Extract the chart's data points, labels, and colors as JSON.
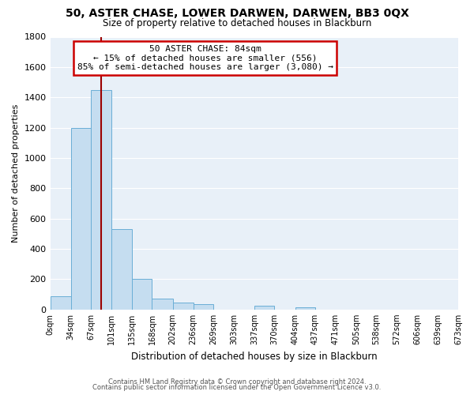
{
  "title": "50, ASTER CHASE, LOWER DARWEN, DARWEN, BB3 0QX",
  "subtitle": "Size of property relative to detached houses in Blackburn",
  "xlabel": "Distribution of detached houses by size in Blackburn",
  "ylabel": "Number of detached properties",
  "bar_color": "#c5ddf0",
  "bar_edge_color": "#6aaed6",
  "annotation_line_color": "#9b0000",
  "annotation_box_color": "#cc0000",
  "bins": [
    0,
    34,
    67,
    101,
    135,
    168,
    202,
    236,
    269,
    303,
    337,
    370,
    404,
    437,
    471,
    505,
    538,
    572,
    606,
    639,
    673
  ],
  "counts": [
    90,
    1200,
    1450,
    530,
    200,
    70,
    48,
    35,
    0,
    0,
    25,
    0,
    15,
    0,
    0,
    0,
    0,
    0,
    0,
    0
  ],
  "tick_labels": [
    "0sqm",
    "34sqm",
    "67sqm",
    "101sqm",
    "135sqm",
    "168sqm",
    "202sqm",
    "236sqm",
    "269sqm",
    "303sqm",
    "337sqm",
    "370sqm",
    "404sqm",
    "437sqm",
    "471sqm",
    "505sqm",
    "538sqm",
    "572sqm",
    "606sqm",
    "639sqm",
    "673sqm"
  ],
  "ylim": [
    0,
    1800
  ],
  "yticks": [
    0,
    200,
    400,
    600,
    800,
    1000,
    1200,
    1400,
    1600,
    1800
  ],
  "property_size": 84,
  "annotation_title": "50 ASTER CHASE: 84sqm",
  "annotation_line1": "← 15% of detached houses are smaller (556)",
  "annotation_line2": "85% of semi-detached houses are larger (3,080) →",
  "footer1": "Contains HM Land Registry data © Crown copyright and database right 2024.",
  "footer2": "Contains public sector information licensed under the Open Government Licence v3.0.",
  "background_color": "#ffffff",
  "plot_bg_color": "#e8f0f8",
  "grid_color": "#ffffff"
}
